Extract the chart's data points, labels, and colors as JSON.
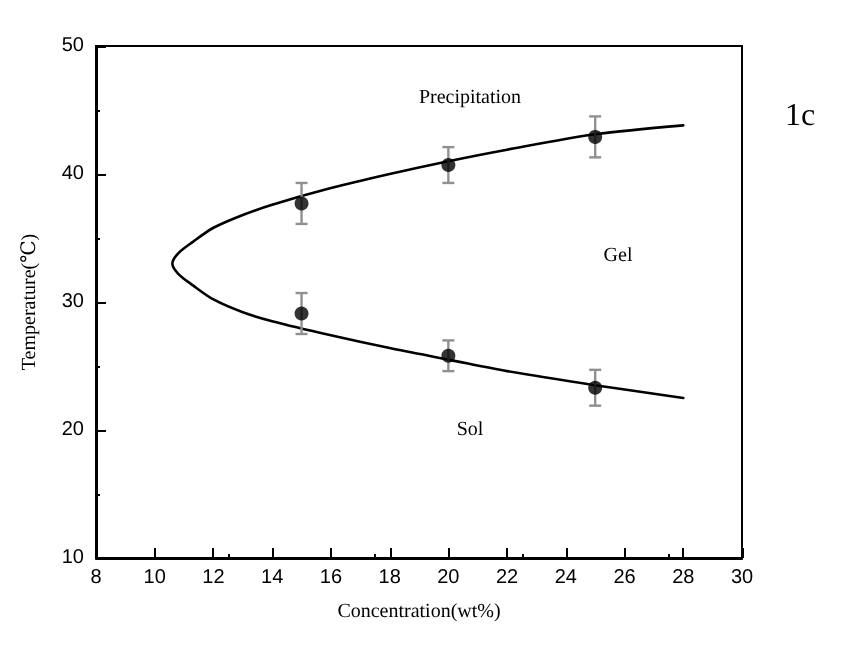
{
  "chart_data": {
    "type": "scatter",
    "xlabel": "Concentration(wt%)",
    "ylabel": "Temperature(℃)",
    "xlim": [
      8,
      30
    ],
    "xticks": [
      8,
      10,
      12,
      14,
      16,
      18,
      20,
      22,
      24,
      26,
      28,
      30
    ],
    "ylim": [
      10,
      50
    ],
    "yticks": [
      10,
      20,
      30,
      40,
      50
    ],
    "grid": false,
    "marker": "circle",
    "series": [
      {
        "type": "line",
        "color": "#000000",
        "marker": "none",
        "x": [
          28,
          25,
          22,
          20,
          18,
          16,
          14,
          13,
          12,
          11.3,
          10.8,
          10.6,
          10.8,
          11.3,
          12,
          13,
          14,
          16,
          18,
          20,
          22,
          25,
          28
        ],
        "values": [
          43.8,
          43.1,
          41.9,
          41.0,
          40.0,
          38.9,
          37.6,
          36.8,
          35.8,
          34.7,
          33.8,
          33.0,
          32.2,
          31.3,
          30.2,
          29.2,
          28.5,
          27.4,
          26.4,
          25.5,
          24.6,
          23.5,
          22.5
        ]
      },
      {
        "color": "#000000",
        "x": [
          15,
          20,
          25
        ],
        "values": [
          37.7,
          40.7,
          42.9
        ],
        "errors": [
          1.6,
          1.4,
          1.6
        ]
      },
      {
        "color": "#000000",
        "x": [
          15,
          20,
          25
        ],
        "values": [
          29.1,
          25.8,
          23.3
        ],
        "errors": [
          1.6,
          1.2,
          1.4
        ]
      }
    ],
    "annotations": [
      "Precipitation",
      "Gel",
      "Sol",
      "1c"
    ]
  }
}
